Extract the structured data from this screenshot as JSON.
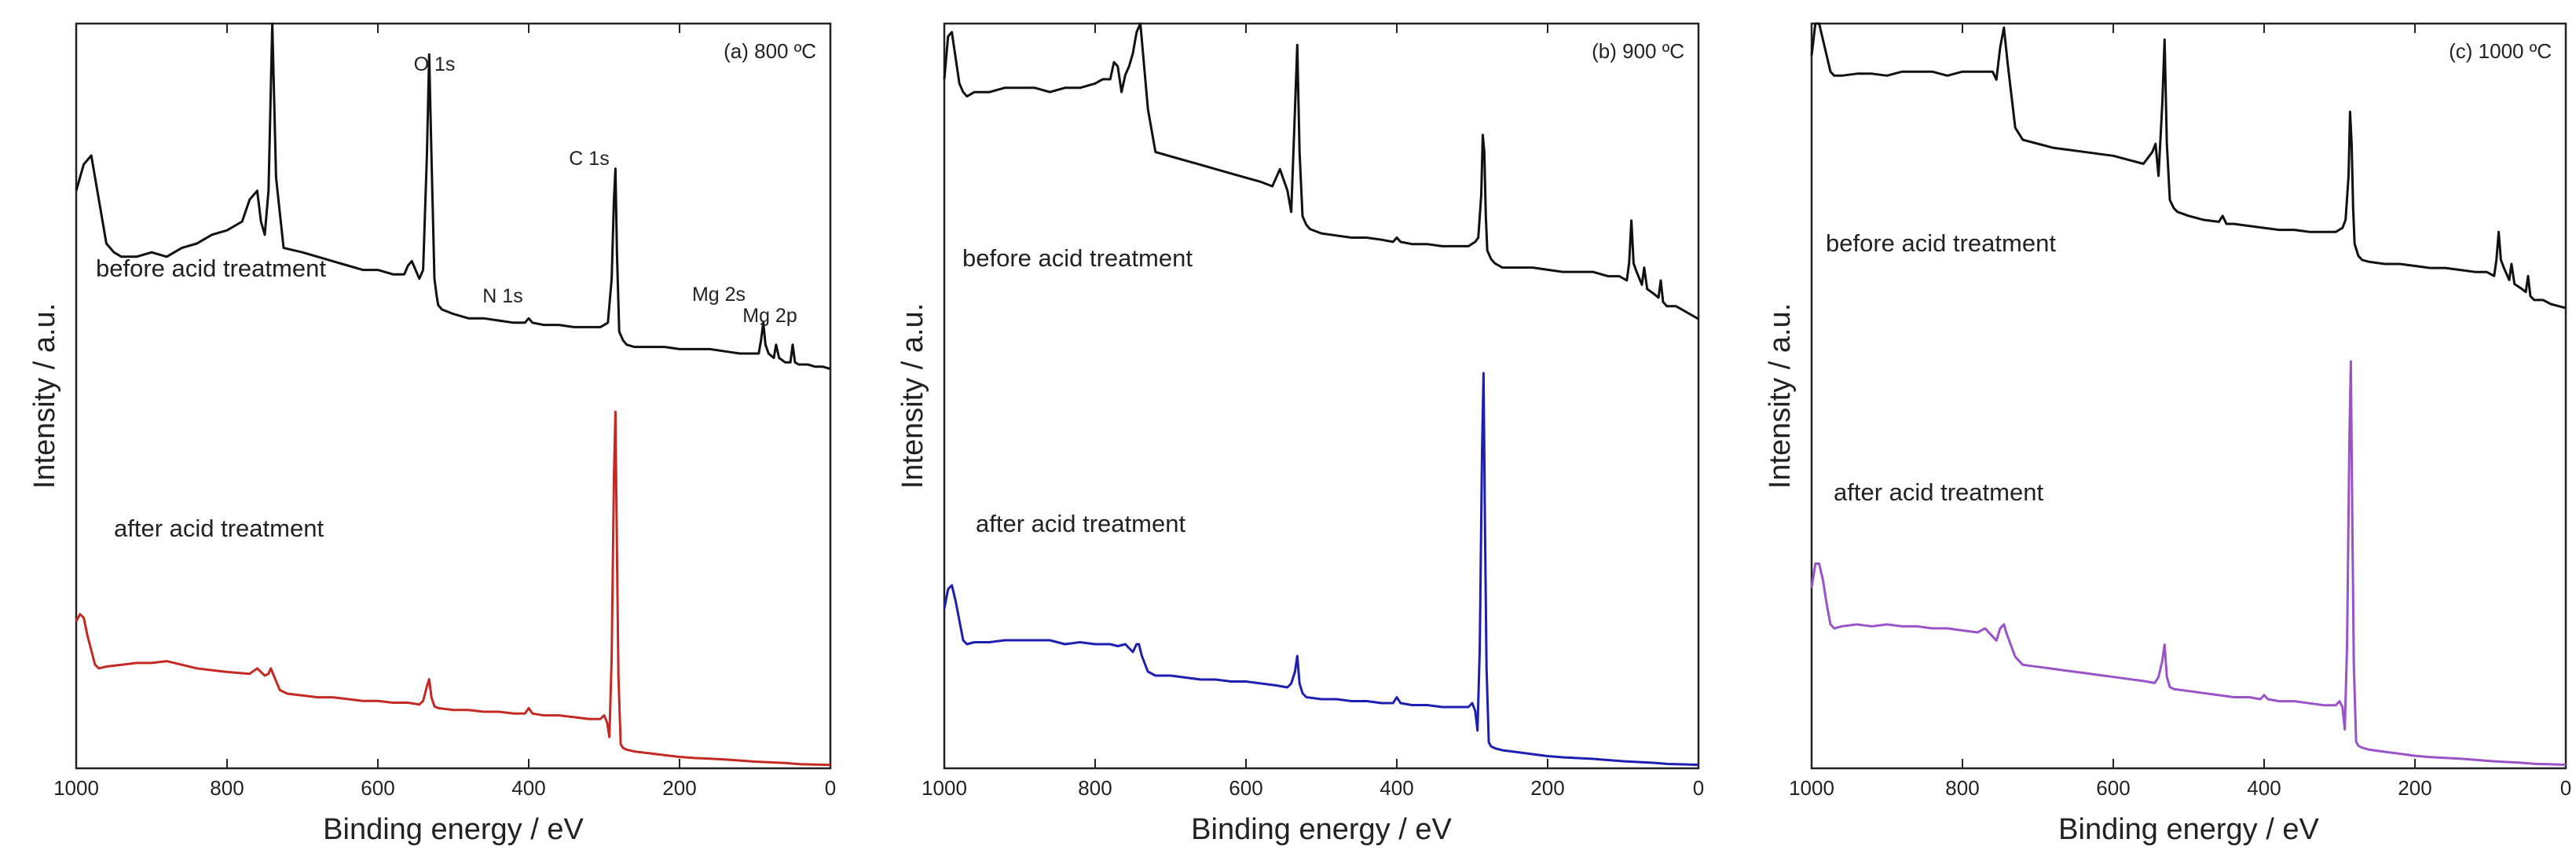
{
  "figure": {
    "colors": {
      "before": "#111111",
      "axis": "#222222",
      "panel_a_after": "#c42a23",
      "panel_b_after": "#1d1fb0",
      "panel_c_after": "#9a52c8"
    }
  },
  "chart_data": [
    {
      "type": "line",
      "panel_tag": "(a) 800 ºC",
      "xlabel": "Binding energy / eV",
      "ylabel": "Intensity / a.u.",
      "xlim": [
        1000,
        0
      ],
      "x_reversed": true,
      "xticks": [
        "1000",
        "800",
        "600",
        "400",
        "200",
        "0"
      ],
      "y_ticks_shown": false,
      "grid": false,
      "curve_labels": {
        "before": "before acid treatment",
        "after": "after acid treatment"
      },
      "peak_labels": [
        {
          "text": "O 1s",
          "x": 532
        },
        {
          "text": "C 1s",
          "x": 285
        },
        {
          "text": "N 1s",
          "x": 400
        },
        {
          "text": "Mg 2s",
          "x": 89
        },
        {
          "text": "Mg 2p",
          "x": 50
        }
      ],
      "series": [
        {
          "key": "before",
          "x": [
            1000,
            990,
            980,
            970,
            960,
            950,
            940,
            920,
            900,
            880,
            860,
            840,
            820,
            800,
            780,
            770,
            760,
            755,
            750,
            745,
            740,
            735,
            725,
            700,
            680,
            660,
            640,
            620,
            600,
            580,
            565,
            560,
            555,
            545,
            540,
            535,
            532,
            529,
            525,
            522,
            520,
            515,
            500,
            480,
            460,
            440,
            420,
            405,
            400,
            395,
            380,
            360,
            340,
            320,
            305,
            295,
            290,
            287,
            285,
            283,
            280,
            275,
            270,
            260,
            240,
            220,
            200,
            180,
            160,
            140,
            120,
            105,
            95,
            92,
            89,
            86,
            82,
            75,
            72,
            68,
            60,
            53,
            50,
            47,
            42,
            30,
            20,
            10,
            0
          ],
          "y": [
            62,
            68,
            70,
            60,
            50,
            48,
            47,
            47,
            48,
            47,
            49,
            50,
            52,
            53,
            55,
            60,
            62,
            55,
            52,
            62,
            100,
            65,
            49,
            48,
            47,
            46,
            45,
            44,
            44,
            43,
            43,
            45,
            46,
            42,
            44,
            70,
            93,
            70,
            42,
            38,
            36,
            35,
            34,
            33,
            33,
            32.5,
            32,
            32,
            33,
            32,
            31.5,
            31.5,
            31,
            31,
            31,
            32,
            42,
            60,
            67,
            48,
            30,
            28,
            27,
            26.5,
            26.5,
            26.5,
            26,
            26,
            26,
            25.5,
            25,
            25,
            25,
            28,
            32,
            27,
            25,
            24,
            27,
            24,
            23,
            23,
            27,
            23,
            22.5,
            22.5,
            22,
            22,
            21.5
          ]
        },
        {
          "key": "after",
          "x": [
            1000,
            995,
            990,
            985,
            980,
            975,
            970,
            960,
            940,
            920,
            900,
            880,
            860,
            840,
            800,
            770,
            760,
            755,
            750,
            745,
            742,
            738,
            730,
            720,
            700,
            680,
            660,
            640,
            620,
            600,
            580,
            560,
            545,
            540,
            535,
            532,
            529,
            525,
            520,
            500,
            480,
            460,
            440,
            420,
            405,
            400,
            395,
            380,
            360,
            340,
            320,
            305,
            300,
            296,
            293,
            290,
            287,
            285,
            283,
            281,
            278,
            275,
            270,
            260,
            240,
            220,
            200,
            180,
            160,
            140,
            120,
            100,
            80,
            60,
            40,
            20,
            0
          ],
          "y": [
            40,
            42,
            41,
            36,
            32,
            28,
            27,
            27.5,
            28,
            28.5,
            28.5,
            29,
            28,
            27,
            26,
            25.5,
            27,
            26,
            25,
            25.5,
            27,
            25,
            21,
            20,
            19.5,
            19,
            19,
            18.5,
            18,
            18,
            17.5,
            17.5,
            17,
            18,
            22,
            24,
            19,
            16.5,
            16,
            15.5,
            15.5,
            15,
            15,
            14.5,
            14.5,
            16,
            14.5,
            14,
            14,
            13.5,
            13,
            13,
            14,
            12,
            8,
            30,
            80,
            98,
            60,
            25,
            6,
            5,
            4.5,
            4,
            3.5,
            3,
            2.5,
            2.2,
            2,
            1.8,
            1.5,
            1.2,
            1,
            0.8,
            0.5,
            0.4,
            0.3
          ]
        }
      ]
    },
    {
      "type": "line",
      "panel_tag": "(b) 900 ºC",
      "xlabel": "Binding energy / eV",
      "ylabel": "Intensity / a.u.",
      "xlim": [
        1000,
        0
      ],
      "x_reversed": true,
      "xticks": [
        "1000",
        "800",
        "600",
        "400",
        "200",
        "0"
      ],
      "y_ticks_shown": false,
      "grid": false,
      "curve_labels": {
        "before": "before acid treatment",
        "after": "after acid treatment"
      },
      "peak_labels": [],
      "series": [
        {
          "key": "before",
          "x": [
            1000,
            995,
            990,
            985,
            980,
            975,
            970,
            960,
            940,
            920,
            900,
            880,
            860,
            840,
            820,
            800,
            790,
            780,
            775,
            770,
            765,
            760,
            755,
            750,
            745,
            740,
            735,
            730,
            720,
            700,
            680,
            660,
            640,
            620,
            600,
            580,
            565,
            560,
            555,
            545,
            540,
            535,
            532,
            529,
            525,
            520,
            515,
            500,
            480,
            460,
            440,
            420,
            405,
            400,
            395,
            380,
            360,
            340,
            320,
            305,
            296,
            292,
            288,
            286,
            284,
            282,
            280,
            275,
            270,
            260,
            240,
            220,
            200,
            180,
            160,
            140,
            120,
            105,
            95,
            92,
            89,
            86,
            82,
            75,
            72,
            68,
            60,
            53,
            50,
            47,
            42,
            30,
            20,
            10,
            0
          ],
          "y": [
            87,
            97,
            98,
            92,
            86,
            84,
            83,
            84,
            84,
            85,
            85,
            85,
            84,
            85,
            85,
            86,
            87,
            87,
            91,
            90,
            84,
            88,
            90,
            93,
            98,
            100,
            90,
            80,
            70,
            69,
            68,
            67,
            66,
            65,
            64,
            63,
            62,
            64,
            66,
            61,
            56,
            80,
            95,
            70,
            55,
            53,
            52,
            51,
            50.5,
            50,
            50,
            49.5,
            49,
            50,
            49,
            48.5,
            48.5,
            48,
            48,
            48,
            49,
            50,
            60,
            74,
            70,
            55,
            47,
            45,
            44,
            43,
            43,
            43,
            42.5,
            42,
            42,
            42,
            41,
            41,
            40,
            44,
            54,
            44,
            42,
            39,
            43,
            38,
            37,
            36,
            40,
            35,
            34,
            34,
            33,
            32,
            31
          ]
        },
        {
          "key": "after",
          "x": [
            1000,
            995,
            990,
            985,
            980,
            975,
            970,
            960,
            940,
            920,
            900,
            880,
            860,
            840,
            820,
            800,
            780,
            770,
            760,
            755,
            750,
            745,
            742,
            738,
            730,
            720,
            700,
            680,
            660,
            640,
            620,
            600,
            580,
            560,
            545,
            540,
            535,
            532,
            529,
            525,
            520,
            500,
            480,
            460,
            440,
            420,
            405,
            400,
            395,
            380,
            360,
            340,
            320,
            305,
            300,
            296,
            293,
            290,
            287,
            285,
            283,
            281,
            278,
            275,
            270,
            260,
            240,
            220,
            200,
            180,
            160,
            140,
            120,
            100,
            80,
            60,
            40,
            20,
            0
          ],
          "y": [
            40,
            45,
            46,
            42,
            37,
            32,
            31,
            31.5,
            31.5,
            32,
            32,
            32,
            32,
            31,
            31.5,
            31,
            31,
            30.5,
            31,
            30,
            29,
            31,
            31,
            28,
            24,
            23,
            23,
            22.5,
            22,
            22,
            21.5,
            21.5,
            21,
            20.5,
            20,
            21,
            24,
            28,
            21,
            18.5,
            17.5,
            17,
            17,
            16.5,
            16.5,
            16,
            16,
            17.5,
            16,
            15.5,
            15.5,
            15,
            15,
            15,
            16,
            14,
            9,
            30,
            80,
            100,
            60,
            25,
            6,
            5,
            4.5,
            4,
            3.5,
            3,
            2.5,
            2.2,
            2,
            1.8,
            1.5,
            1.2,
            1,
            0.8,
            0.5,
            0.4,
            0.3
          ]
        }
      ]
    },
    {
      "type": "line",
      "panel_tag": "(c) 1000 ºC",
      "xlabel": "Binding energy / eV",
      "ylabel": "Intensity / a.u.",
      "xlim": [
        1000,
        0
      ],
      "x_reversed": true,
      "xticks": [
        "1000",
        "800",
        "600",
        "400",
        "200",
        "0"
      ],
      "y_ticks_shown": false,
      "grid": false,
      "curve_labels": {
        "before": "before acid treatment",
        "after": "after acid treatment"
      },
      "peak_labels": [],
      "series": [
        {
          "key": "before",
          "x": [
            1000,
            995,
            990,
            985,
            980,
            975,
            970,
            960,
            940,
            920,
            900,
            880,
            860,
            840,
            820,
            800,
            780,
            770,
            760,
            755,
            750,
            745,
            740,
            735,
            730,
            720,
            700,
            680,
            660,
            640,
            620,
            600,
            580,
            560,
            548,
            544,
            540,
            535,
            532,
            529,
            525,
            520,
            515,
            500,
            480,
            460,
            455,
            450,
            440,
            420,
            400,
            380,
            360,
            340,
            320,
            305,
            296,
            292,
            288,
            286,
            284,
            282,
            280,
            275,
            270,
            260,
            240,
            220,
            200,
            180,
            160,
            140,
            120,
            105,
            95,
            92,
            89,
            86,
            82,
            75,
            72,
            68,
            60,
            53,
            50,
            47,
            42,
            30,
            20,
            10,
            0
          ],
          "y": [
            92,
            100,
            100,
            96,
            92,
            88,
            87,
            87,
            87.5,
            87.5,
            87,
            88,
            88,
            88,
            87,
            88,
            88,
            88,
            88,
            86,
            94,
            99,
            90,
            82,
            74,
            71,
            70,
            69,
            68.5,
            68,
            67.5,
            67,
            66,
            65,
            68,
            70,
            62,
            80,
            96,
            70,
            56,
            54,
            53,
            52,
            51,
            50.5,
            52,
            50,
            50,
            49.5,
            49,
            48.5,
            48.5,
            48,
            48,
            48,
            49,
            51,
            62,
            78,
            70,
            54,
            45,
            42,
            41,
            40.5,
            40,
            40,
            39.5,
            39,
            39,
            38.5,
            38,
            38,
            37,
            41,
            48,
            41,
            39,
            36,
            40,
            35,
            34,
            33,
            37,
            32,
            31,
            31,
            30,
            29.5,
            29
          ]
        },
        {
          "key": "after",
          "x": [
            1000,
            995,
            990,
            985,
            980,
            975,
            970,
            960,
            940,
            920,
            900,
            880,
            860,
            840,
            820,
            800,
            780,
            770,
            760,
            755,
            750,
            745,
            742,
            738,
            730,
            720,
            700,
            680,
            660,
            640,
            620,
            600,
            580,
            560,
            545,
            540,
            535,
            532,
            529,
            525,
            520,
            500,
            480,
            460,
            440,
            420,
            405,
            400,
            395,
            380,
            360,
            340,
            320,
            305,
            300,
            296,
            293,
            290,
            287,
            285,
            283,
            281,
            278,
            275,
            270,
            260,
            240,
            220,
            200,
            180,
            160,
            140,
            120,
            100,
            80,
            60,
            40,
            20,
            0
          ],
          "y": [
            44,
            50,
            50,
            46,
            40,
            35,
            34,
            34.5,
            35,
            34.5,
            35,
            34.5,
            34.5,
            34,
            34,
            33.5,
            33,
            34,
            32,
            31,
            34,
            35,
            33,
            31,
            27,
            25,
            24.5,
            24,
            23.5,
            23,
            22.5,
            22,
            21.5,
            21,
            20.5,
            22,
            26,
            30,
            22,
            19.5,
            19,
            18.5,
            18,
            17.5,
            17,
            17,
            16.5,
            17.5,
            16.5,
            16,
            16,
            15.5,
            15,
            15,
            16,
            14.5,
            9,
            30,
            80,
            100,
            60,
            25,
            6,
            5,
            4.5,
            4,
            3.5,
            3,
            2.5,
            2.2,
            2,
            1.8,
            1.5,
            1.2,
            1,
            0.8,
            0.5,
            0.4,
            0.3
          ]
        }
      ]
    }
  ]
}
